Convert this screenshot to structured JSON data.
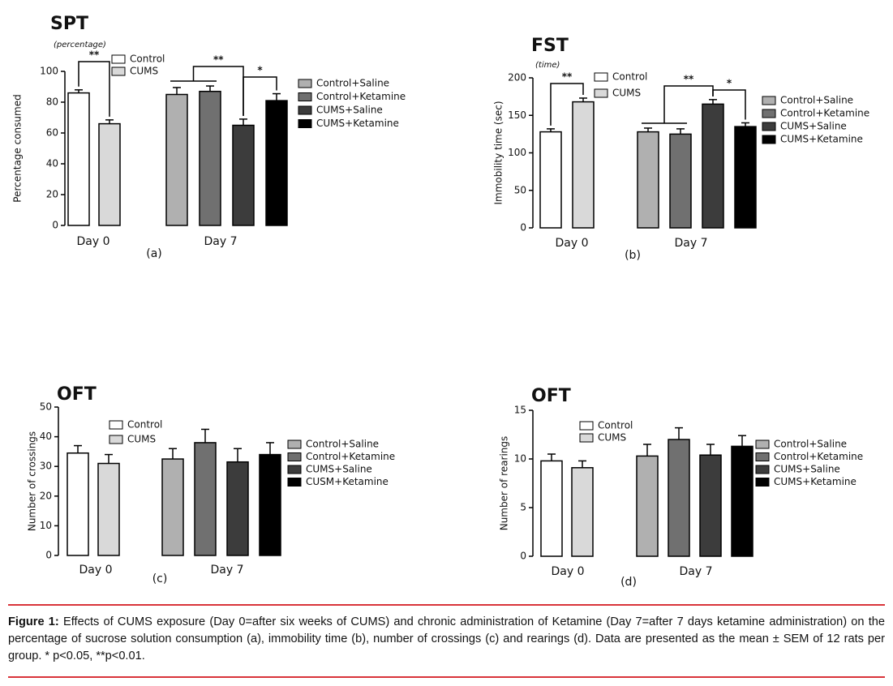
{
  "chart_data": [
    {
      "type": "bar",
      "title": "SPT",
      "subtitle": "(percentage)",
      "ylabel": "Percentage consumed",
      "panel": "(a)",
      "categories": [
        "Day 0",
        "Day 7"
      ],
      "series": [
        {
          "name": "Control",
          "color": "#ffffff",
          "values": [
            86,
            null
          ],
          "errors": [
            2,
            null
          ]
        },
        {
          "name": "CUMS",
          "color": "#d9d9d9",
          "values": [
            66,
            null
          ],
          "errors": [
            2.5,
            null
          ]
        },
        {
          "name": "Control+Saline",
          "color": "#b0b0b0",
          "values": [
            null,
            85
          ],
          "errors": [
            null,
            4.5
          ]
        },
        {
          "name": "Control+Ketamine",
          "color": "#707070",
          "values": [
            null,
            87
          ],
          "errors": [
            null,
            3.5
          ]
        },
        {
          "name": "CUMS+Saline",
          "color": "#3c3c3c",
          "values": [
            null,
            65
          ],
          "errors": [
            null,
            4
          ]
        },
        {
          "name": "CUMS+Ketamine",
          "color": "#000000",
          "values": [
            null,
            81
          ],
          "errors": [
            null,
            4.5
          ]
        }
      ],
      "ylim": [
        0,
        100
      ],
      "yticks": [
        0,
        20,
        40,
        60,
        80,
        100
      ],
      "significance": [
        "**",
        "**",
        "*"
      ]
    },
    {
      "type": "bar",
      "title": "FST",
      "subtitle": "(time)",
      "ylabel": "Immobility time (sec)",
      "panel": "(b)",
      "categories": [
        "Day 0",
        "Day 7"
      ],
      "series": [
        {
          "name": "Control",
          "color": "#ffffff",
          "values": [
            128,
            null
          ],
          "errors": [
            4,
            null
          ]
        },
        {
          "name": "CUMS",
          "color": "#d9d9d9",
          "values": [
            168,
            null
          ],
          "errors": [
            5,
            null
          ]
        },
        {
          "name": "Control+Saline",
          "color": "#b0b0b0",
          "values": [
            null,
            128
          ],
          "errors": [
            null,
            5
          ]
        },
        {
          "name": "Control+Ketamine",
          "color": "#707070",
          "values": [
            null,
            125
          ],
          "errors": [
            null,
            7
          ]
        },
        {
          "name": "CUMS+Saline",
          "color": "#3c3c3c",
          "values": [
            null,
            165
          ],
          "errors": [
            null,
            6
          ]
        },
        {
          "name": "CUMS+Ketamine",
          "color": "#000000",
          "values": [
            null,
            135
          ],
          "errors": [
            null,
            5
          ]
        }
      ],
      "ylim": [
        0,
        200
      ],
      "yticks": [
        0,
        50,
        100,
        150,
        200
      ],
      "significance": [
        "**",
        "**",
        "*"
      ]
    },
    {
      "type": "bar",
      "title": "OFT",
      "ylabel": "Number of crossings",
      "panel": "(c)",
      "categories": [
        "Day 0",
        "Day 7"
      ],
      "series": [
        {
          "name": "Control",
          "color": "#ffffff",
          "values": [
            34.5,
            null
          ],
          "errors": [
            2.5,
            null
          ]
        },
        {
          "name": "CUMS",
          "color": "#d9d9d9",
          "values": [
            31,
            null
          ],
          "errors": [
            3,
            null
          ]
        },
        {
          "name": "Control+Saline",
          "color": "#b0b0b0",
          "values": [
            null,
            32.5
          ],
          "errors": [
            null,
            3.5
          ]
        },
        {
          "name": "Control+Ketamine",
          "color": "#707070",
          "values": [
            null,
            38
          ],
          "errors": [
            null,
            4.5
          ]
        },
        {
          "name": "CUMS+Saline",
          "color": "#3c3c3c",
          "values": [
            null,
            31.5
          ],
          "errors": [
            null,
            4.5
          ]
        },
        {
          "name": "CUSM+Ketamine",
          "color": "#000000",
          "values": [
            null,
            34
          ],
          "errors": [
            null,
            4
          ]
        }
      ],
      "ylim": [
        0,
        50
      ],
      "yticks": [
        0,
        10,
        20,
        30,
        40,
        50
      ]
    },
    {
      "type": "bar",
      "title": "OFT",
      "ylabel": "Number of rearings",
      "panel": "(d)",
      "categories": [
        "Day 0",
        "Day 7"
      ],
      "series": [
        {
          "name": "Control",
          "color": "#ffffff",
          "values": [
            9.8,
            null
          ],
          "errors": [
            0.7,
            null
          ]
        },
        {
          "name": "CUMS",
          "color": "#d9d9d9",
          "values": [
            9.1,
            null
          ],
          "errors": [
            0.7,
            null
          ]
        },
        {
          "name": "Control+Saline",
          "color": "#b0b0b0",
          "values": [
            null,
            10.3
          ],
          "errors": [
            null,
            1.2
          ]
        },
        {
          "name": "Control+Ketamine",
          "color": "#707070",
          "values": [
            null,
            12
          ],
          "errors": [
            null,
            1.2
          ]
        },
        {
          "name": "CUMS+Saline",
          "color": "#3c3c3c",
          "values": [
            null,
            10.4
          ],
          "errors": [
            null,
            1.1
          ]
        },
        {
          "name": "CUMS+Ketamine",
          "color": "#000000",
          "values": [
            null,
            11.3
          ],
          "errors": [
            null,
            1.1
          ]
        }
      ],
      "ylim": [
        0,
        15
      ],
      "yticks": [
        0,
        5,
        10,
        15
      ]
    }
  ],
  "caption": {
    "label": "Figure 1:",
    "text": "Effects of CUMS exposure (Day 0=after six weeks of CUMS) and chronic administration of Ketamine (Day 7=after 7 days ketamine administration) on the percentage of sucrose solution consumption (a), immobility time (b), number of crossings (c) and rearings (d). Data are presented as the mean ± SEM of 12 rats per group. * p<0.05, **p<0.01."
  }
}
